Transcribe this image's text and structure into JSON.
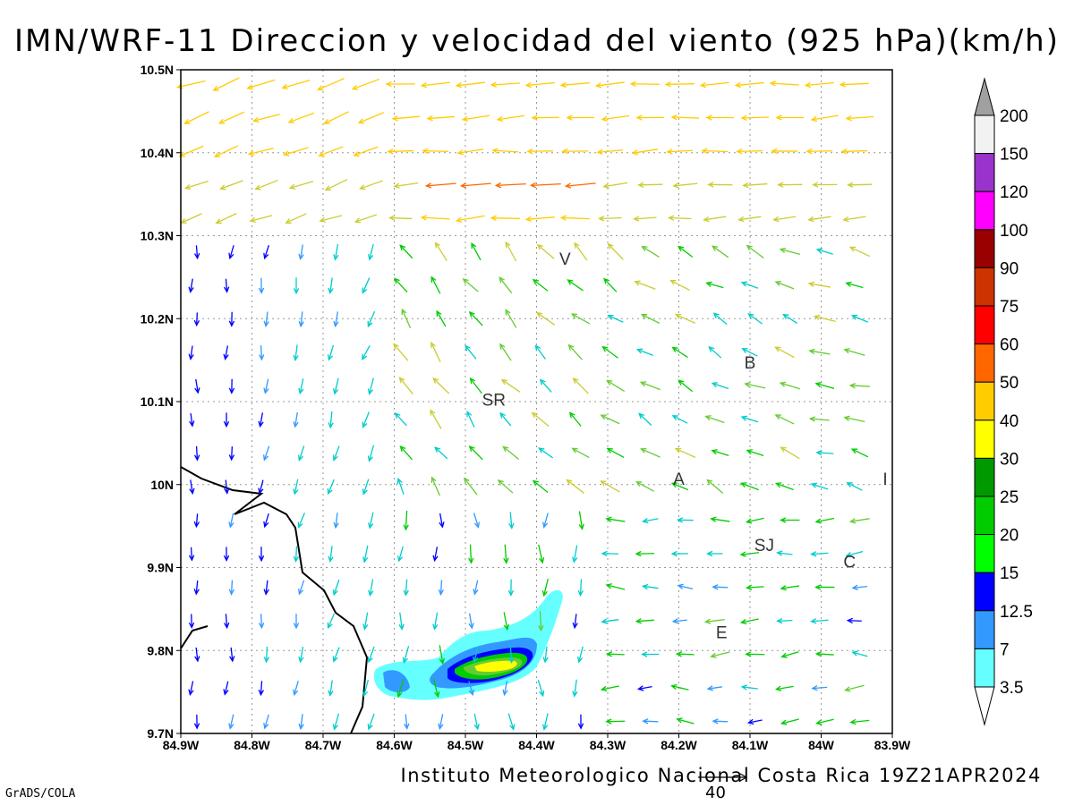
{
  "title": "IMN/WRF-11 Direccion y velocidad del viento (925 hPa)(km/h)",
  "credit": "Instituto Meteorologico Nacional Costa Rica  19Z21APR2024",
  "software": "GrADS/COLA",
  "reference_vector": {
    "label": "40",
    "speed": 40
  },
  "axes": {
    "lon_range": [
      -84.9,
      -83.9
    ],
    "lat_range": [
      9.7,
      10.5
    ],
    "x_ticks": [
      "84.9W",
      "84.8W",
      "84.7W",
      "84.6W",
      "84.5W",
      "84.4W",
      "84.3W",
      "84.2W",
      "84.1W",
      "84W",
      "83.9W"
    ],
    "y_ticks": [
      "9.7N",
      "9.8N",
      "9.9N",
      "10N",
      "10.1N",
      "10.2N",
      "10.3N",
      "10.4N",
      "10.5N"
    ],
    "grid": "dotted"
  },
  "place_labels": [
    {
      "text": "V",
      "lon": -84.36,
      "lat": 10.265
    },
    {
      "text": "SR",
      "lon": -84.46,
      "lat": 10.095
    },
    {
      "text": "B",
      "lon": -84.1,
      "lat": 10.14
    },
    {
      "text": "A",
      "lon": -84.2,
      "lat": 10.0
    },
    {
      "text": "I",
      "lon": -83.91,
      "lat": 10.0
    },
    {
      "text": "SJ",
      "lon": -84.08,
      "lat": 9.92
    },
    {
      "text": "C",
      "lon": -83.96,
      "lat": 9.9
    },
    {
      "text": "E",
      "lon": -84.14,
      "lat": 9.815
    }
  ],
  "colorbar": {
    "levels": [
      "200",
      "150",
      "120",
      "100",
      "90",
      "75",
      "60",
      "50",
      "40",
      "30",
      "25",
      "20",
      "15",
      "12.5",
      "7",
      "3.5"
    ],
    "colors": [
      "#f2f2f2",
      "#9933cc",
      "#ff00ff",
      "#990000",
      "#cc3300",
      "#ff0000",
      "#ff6600",
      "#ffcc00",
      "#ffff00",
      "#009900",
      "#00cc00",
      "#00ff00",
      "#0000ff",
      "#3399ff",
      "#66ffff"
    ],
    "over_color": "#a0a0a0",
    "under_color": "#ffffff"
  },
  "speed_colors": [
    {
      "max": 3.5,
      "color": "#66ffff"
    },
    {
      "max": 7,
      "color": "#3399ff"
    },
    {
      "max": 12.5,
      "color": "#0000ff"
    },
    {
      "max": 15,
      "color": "#3399ff"
    },
    {
      "max": 20,
      "color": "#00cccc"
    },
    {
      "max": 25,
      "color": "#00cc00"
    },
    {
      "max": 30,
      "color": "#66cc33"
    },
    {
      "max": 40,
      "color": "#cccc33"
    },
    {
      "max": 50,
      "color": "#ffcc00"
    },
    {
      "max": 60,
      "color": "#ff6600"
    },
    {
      "max": 999,
      "color": "#ff3333"
    }
  ]
}
